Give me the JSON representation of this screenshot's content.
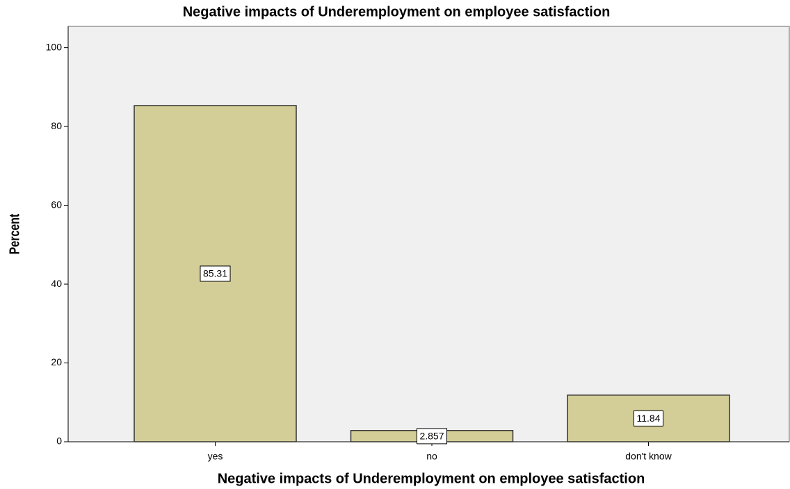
{
  "chart_data": {
    "type": "bar",
    "title": "Negative impacts of Underemployment on employee satisfaction",
    "x_label": "Negative impacts of Underemployment on employee satisfaction",
    "y_label": "Percent",
    "categories": [
      "yes",
      "no",
      "don't know"
    ],
    "values": [
      85.31,
      2.857,
      11.84
    ],
    "color": "#d3ce97",
    "ylim": [
      0,
      105.4
    ],
    "yticks": [
      0,
      20,
      40,
      60,
      80,
      100
    ],
    "grid": false
  }
}
